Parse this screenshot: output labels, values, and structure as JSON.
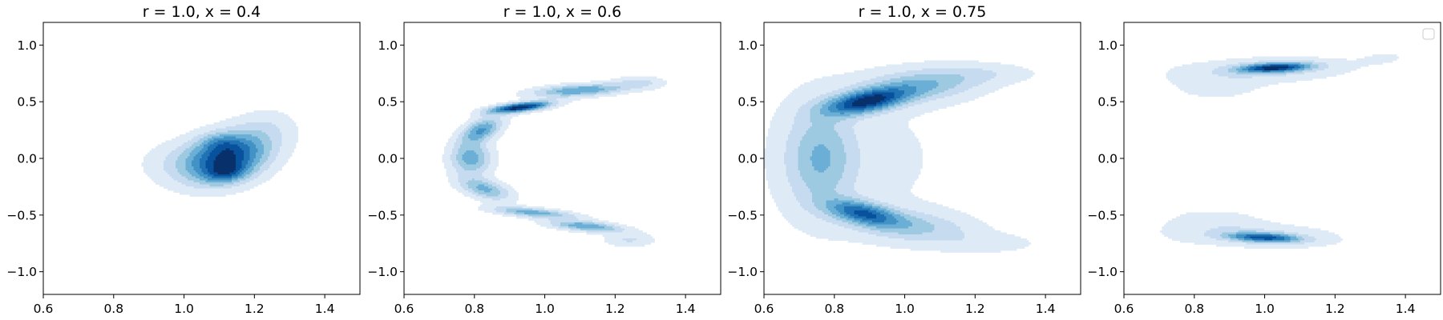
{
  "chart_data": [
    {
      "type": "contour",
      "title": "r = 1.0, x = 0.4",
      "xlim": [
        0.6,
        1.5
      ],
      "ylim": [
        -1.2,
        1.2
      ],
      "xticks": [
        "0.6",
        "0.8",
        "1.0",
        "1.2",
        "1.4"
      ],
      "yticks": [
        "1.0",
        "0.5",
        "0.0",
        "−0.5",
        "−1.0"
      ],
      "levels": 8,
      "colormap": "Blues",
      "density_components": [
        {
          "cx": 1.13,
          "cy": 0.02,
          "sx": 0.08,
          "sy": 0.15,
          "rho": 0.3,
          "w": 1.0
        },
        {
          "cx": 1.12,
          "cy": -0.13,
          "sx": 0.04,
          "sy": 0.06,
          "rho": 0.2,
          "w": 0.45
        },
        {
          "cx": 1.1,
          "cy": 0.14,
          "sx": 0.04,
          "sy": 0.06,
          "rho": 0.0,
          "w": 0.25
        },
        {
          "cx": 1.04,
          "cy": -0.05,
          "sx": 0.1,
          "sy": 0.14,
          "rho": 0.0,
          "w": 0.3
        },
        {
          "cx": 1.24,
          "cy": 0.28,
          "sx": 0.06,
          "sy": 0.12,
          "rho": 0.0,
          "w": 0.15
        }
      ]
    },
    {
      "type": "contour",
      "title": "r = 1.0, x = 0.6",
      "xlim": [
        0.6,
        1.5
      ],
      "ylim": [
        -1.2,
        1.2
      ],
      "xticks": [
        "0.6",
        "0.8",
        "1.0",
        "1.2",
        "1.4"
      ],
      "yticks": [
        "1.0",
        "0.5",
        "0.0",
        "−0.5",
        "−1.0"
      ],
      "levels": 8,
      "colormap": "Blues",
      "density_components": [
        {
          "cx": 0.93,
          "cy": 0.45,
          "sx": 0.06,
          "sy": 0.035,
          "rho": 0.6,
          "w": 1.0
        },
        {
          "cx": 1.1,
          "cy": 0.6,
          "sx": 0.09,
          "sy": 0.04,
          "rho": 0.4,
          "w": 0.55
        },
        {
          "cx": 0.82,
          "cy": 0.25,
          "sx": 0.04,
          "sy": 0.08,
          "rho": 0.5,
          "w": 0.55
        },
        {
          "cx": 0.79,
          "cy": 0.0,
          "sx": 0.04,
          "sy": 0.1,
          "rho": 0.0,
          "w": 0.5
        },
        {
          "cx": 0.83,
          "cy": -0.27,
          "sx": 0.05,
          "sy": 0.07,
          "rho": -0.5,
          "w": 0.45
        },
        {
          "cx": 0.97,
          "cy": -0.48,
          "sx": 0.08,
          "sy": 0.035,
          "rho": -0.6,
          "w": 0.5
        },
        {
          "cx": 1.12,
          "cy": -0.6,
          "sx": 0.07,
          "sy": 0.035,
          "rho": -0.5,
          "w": 0.55
        },
        {
          "cx": 1.27,
          "cy": 0.67,
          "sx": 0.05,
          "sy": 0.04,
          "rho": 0.0,
          "w": 0.2
        },
        {
          "cx": 1.24,
          "cy": -0.72,
          "sx": 0.05,
          "sy": 0.04,
          "rho": 0.0,
          "w": 0.2
        }
      ]
    },
    {
      "type": "contour",
      "title": "r = 1.0, x = 0.75",
      "xlim": [
        0.6,
        1.5
      ],
      "ylim": [
        -1.2,
        1.2
      ],
      "xticks": [
        "0.6",
        "0.8",
        "1.0",
        "1.2",
        "1.4"
      ],
      "yticks": [
        "1.0",
        "0.5",
        "0.0",
        "−0.5",
        "−1.0"
      ],
      "levels": 8,
      "colormap": "Blues",
      "density_components": [
        {
          "cx": 0.89,
          "cy": 0.5,
          "sx": 0.08,
          "sy": 0.08,
          "rho": 0.5,
          "w": 1.0
        },
        {
          "cx": 0.88,
          "cy": -0.48,
          "sx": 0.07,
          "sy": 0.08,
          "rho": -0.5,
          "w": 0.75
        },
        {
          "cx": 0.76,
          "cy": 0.0,
          "sx": 0.07,
          "sy": 0.3,
          "rho": 0.0,
          "w": 0.45
        },
        {
          "cx": 1.05,
          "cy": 0.65,
          "sx": 0.12,
          "sy": 0.1,
          "rho": 0.3,
          "w": 0.45
        },
        {
          "cx": 1.02,
          "cy": -0.6,
          "sx": 0.12,
          "sy": 0.1,
          "rho": -0.3,
          "w": 0.35
        },
        {
          "cx": 0.9,
          "cy": 0.0,
          "sx": 0.25,
          "sy": 0.65,
          "rho": 0.0,
          "w": 0.1
        },
        {
          "cx": 1.25,
          "cy": 0.75,
          "sx": 0.1,
          "sy": 0.06,
          "rho": 0.0,
          "w": 0.12
        },
        {
          "cx": 1.25,
          "cy": -0.75,
          "sx": 0.1,
          "sy": 0.06,
          "rho": 0.0,
          "w": 0.12
        }
      ]
    },
    {
      "type": "contour",
      "title": "",
      "xlim": [
        0.6,
        1.5
      ],
      "ylim": [
        -1.2,
        1.2
      ],
      "xticks": [
        "0.6",
        "0.8",
        "1.0",
        "1.2",
        "1.4"
      ],
      "yticks": [
        "1.0",
        "0.5",
        "0.0",
        "−0.5",
        "−1.0"
      ],
      "levels": 8,
      "colormap": "Blues",
      "legend": {
        "placement": "upper right",
        "entries": []
      },
      "density_components": [
        {
          "cx": 1.03,
          "cy": 0.8,
          "sx": 0.07,
          "sy": 0.03,
          "rho": 0.3,
          "w": 1.0
        },
        {
          "cx": 1.0,
          "cy": -0.7,
          "sx": 0.07,
          "sy": 0.03,
          "rho": -0.3,
          "w": 0.85
        },
        {
          "cx": 1.0,
          "cy": 0.78,
          "sx": 0.17,
          "sy": 0.08,
          "rho": 0.2,
          "w": 0.25
        },
        {
          "cx": 0.98,
          "cy": -0.68,
          "sx": 0.17,
          "sy": 0.08,
          "rho": -0.2,
          "w": 0.22
        },
        {
          "cx": 0.88,
          "cy": 0.62,
          "sx": 0.08,
          "sy": 0.08,
          "rho": 0.0,
          "w": 0.12
        },
        {
          "cx": 0.88,
          "cy": -0.55,
          "sx": 0.08,
          "sy": 0.08,
          "rho": 0.0,
          "w": 0.12
        },
        {
          "cx": 0.75,
          "cy": 0.0,
          "sx": 0.06,
          "sy": 0.45,
          "rho": 0.0,
          "w": 0.08
        },
        {
          "cx": 1.35,
          "cy": 0.9,
          "sx": 0.07,
          "sy": 0.07,
          "rho": 0.0,
          "w": 0.08
        },
        {
          "cx": 1.35,
          "cy": -0.9,
          "sx": 0.07,
          "sy": 0.07,
          "rho": 0.0,
          "w": 0.08
        }
      ]
    }
  ]
}
